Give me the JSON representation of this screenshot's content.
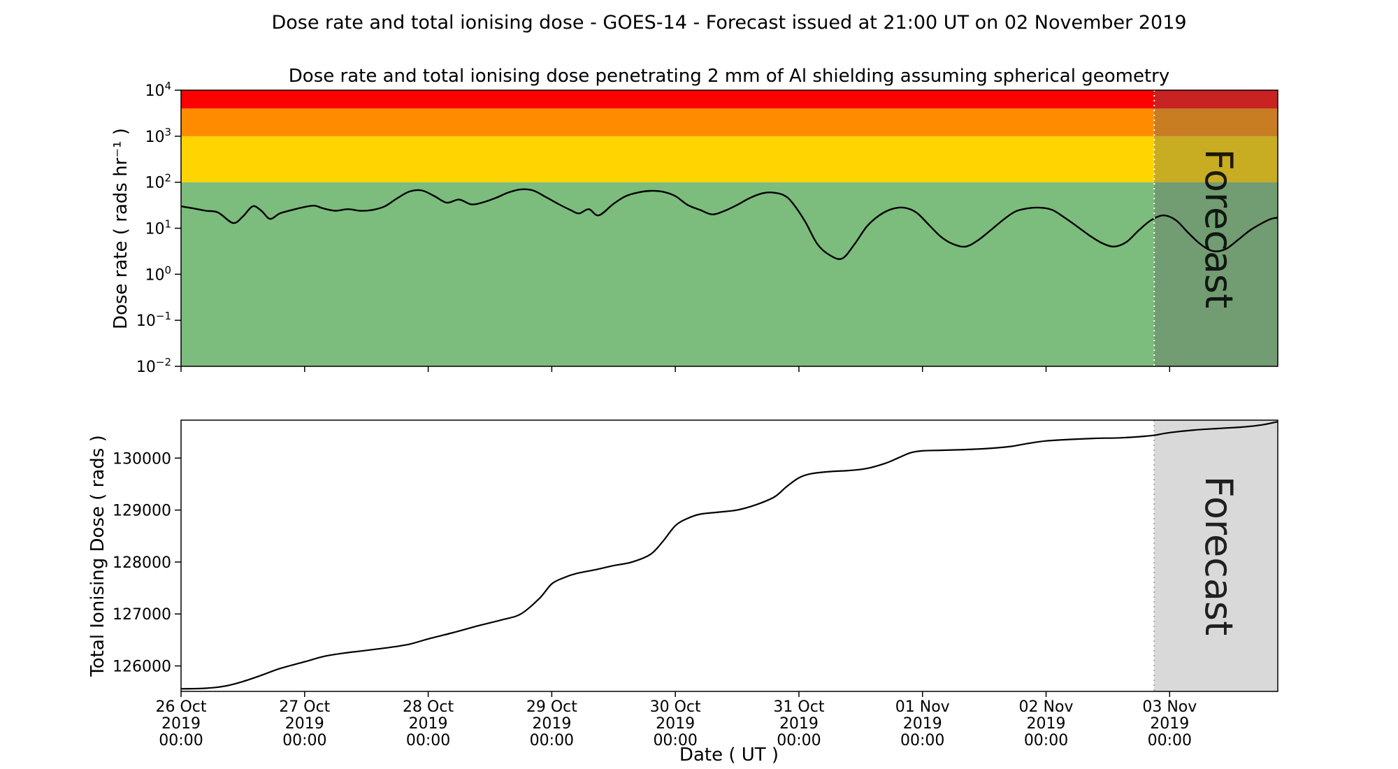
{
  "title": "Dose rate and total ionising dose - GOES-14 - Forecast issued at 21:00 UT on 02 November 2019",
  "subtitle": "Dose rate and total ionising dose penetrating 2 mm of Al shielding assuming spherical geometry",
  "xlabel": "Date ( UT )",
  "forecast": {
    "label": "Forecast",
    "start_day": 7.875,
    "watermark_color": "#8f8f8f",
    "shade_color": "#d9d9d9",
    "overlay_color": "#606060",
    "overlay_opacity": 0.35,
    "boundary_color_top": "#ffffff",
    "boundary_color_bottom": "#a8a8a8"
  },
  "x_axis": {
    "start_day": 0,
    "end_day": 8.875,
    "tick_days": [
      0,
      1,
      2,
      3,
      4,
      5,
      6,
      7,
      8
    ],
    "tick_labels": [
      [
        "26 Oct",
        "2019",
        "00:00"
      ],
      [
        "27 Oct",
        "2019",
        "00:00"
      ],
      [
        "28 Oct",
        "2019",
        "00:00"
      ],
      [
        "29 Oct",
        "2019",
        "00:00"
      ],
      [
        "30 Oct",
        "2019",
        "00:00"
      ],
      [
        "31 Oct",
        "2019",
        "00:00"
      ],
      [
        "01 Nov",
        "2019",
        "00:00"
      ],
      [
        "02 Nov",
        "2019",
        "00:00"
      ],
      [
        "03 Nov",
        "2019",
        "00:00"
      ]
    ]
  },
  "chart_data": [
    {
      "type": "line",
      "name": "dose-rate",
      "ylabel": "Dose rate ( rads hr⁻¹ )",
      "yscale": "log",
      "ylim": [
        0.01,
        10000
      ],
      "ytick_exponents": [
        -2,
        -1,
        0,
        1,
        2,
        3,
        4
      ],
      "line_color": "#000000",
      "bands": [
        {
          "label": "green",
          "from": 0.01,
          "to": 100,
          "color": "#7cbc7c"
        },
        {
          "label": "yellow",
          "from": 100,
          "to": 1000,
          "color": "#ffd400"
        },
        {
          "label": "orange",
          "from": 1000,
          "to": 4000,
          "color": "#ff8c00"
        },
        {
          "label": "red",
          "from": 4000,
          "to": 10000,
          "color": "#ff0000"
        }
      ],
      "points_day_value": [
        [
          0,
          30
        ],
        [
          0.1,
          27
        ],
        [
          0.2,
          24
        ],
        [
          0.3,
          22
        ],
        [
          0.42,
          13
        ],
        [
          0.5,
          18
        ],
        [
          0.58,
          30
        ],
        [
          0.65,
          24
        ],
        [
          0.72,
          16
        ],
        [
          0.8,
          21
        ],
        [
          0.9,
          25
        ],
        [
          1.0,
          29
        ],
        [
          1.08,
          31
        ],
        [
          1.15,
          27
        ],
        [
          1.25,
          24
        ],
        [
          1.35,
          26
        ],
        [
          1.45,
          24
        ],
        [
          1.55,
          25
        ],
        [
          1.65,
          30
        ],
        [
          1.75,
          45
        ],
        [
          1.85,
          63
        ],
        [
          1.95,
          66
        ],
        [
          2.05,
          50
        ],
        [
          2.15,
          36
        ],
        [
          2.25,
          42
        ],
        [
          2.35,
          33
        ],
        [
          2.45,
          37
        ],
        [
          2.55,
          46
        ],
        [
          2.65,
          60
        ],
        [
          2.75,
          70
        ],
        [
          2.85,
          66
        ],
        [
          2.95,
          48
        ],
        [
          3.05,
          34
        ],
        [
          3.15,
          25
        ],
        [
          3.22,
          21
        ],
        [
          3.3,
          26
        ],
        [
          3.38,
          19
        ],
        [
          3.5,
          34
        ],
        [
          3.6,
          50
        ],
        [
          3.7,
          60
        ],
        [
          3.8,
          65
        ],
        [
          3.9,
          62
        ],
        [
          4.0,
          50
        ],
        [
          4.1,
          32
        ],
        [
          4.2,
          25
        ],
        [
          4.3,
          20
        ],
        [
          4.4,
          24
        ],
        [
          4.5,
          32
        ],
        [
          4.6,
          45
        ],
        [
          4.7,
          57
        ],
        [
          4.78,
          60
        ],
        [
          4.88,
          52
        ],
        [
          4.95,
          35
        ],
        [
          5.05,
          14
        ],
        [
          5.15,
          4.5
        ],
        [
          5.25,
          2.6
        ],
        [
          5.35,
          2.2
        ],
        [
          5.45,
          4.5
        ],
        [
          5.55,
          11
        ],
        [
          5.65,
          19
        ],
        [
          5.75,
          26
        ],
        [
          5.85,
          28
        ],
        [
          5.95,
          22
        ],
        [
          6.05,
          12
        ],
        [
          6.15,
          6.5
        ],
        [
          6.25,
          4.5
        ],
        [
          6.35,
          4
        ],
        [
          6.45,
          5.5
        ],
        [
          6.55,
          9
        ],
        [
          6.65,
          15
        ],
        [
          6.75,
          23
        ],
        [
          6.85,
          27
        ],
        [
          6.95,
          28
        ],
        [
          7.05,
          25
        ],
        [
          7.15,
          17
        ],
        [
          7.25,
          11
        ],
        [
          7.35,
          7
        ],
        [
          7.45,
          4.8
        ],
        [
          7.55,
          4
        ],
        [
          7.65,
          5
        ],
        [
          7.75,
          9
        ],
        [
          7.85,
          15
        ],
        [
          7.95,
          19
        ],
        [
          8.05,
          15
        ],
        [
          8.15,
          8
        ],
        [
          8.25,
          4.5
        ],
        [
          8.35,
          3.2
        ],
        [
          8.45,
          3.5
        ],
        [
          8.55,
          5.5
        ],
        [
          8.65,
          9
        ],
        [
          8.75,
          13
        ],
        [
          8.82,
          16
        ],
        [
          8.875,
          17
        ]
      ]
    },
    {
      "type": "line",
      "name": "total-ionising-dose",
      "ylabel": "Total Ionising Dose ( rads )",
      "yscale": "linear",
      "ylim": [
        125510,
        130730
      ],
      "yticks": [
        126000,
        127000,
        128000,
        129000,
        130000
      ],
      "line_color": "#000000",
      "points_day_value": [
        [
          0,
          125560
        ],
        [
          0.2,
          125570
        ],
        [
          0.35,
          125610
        ],
        [
          0.5,
          125700
        ],
        [
          0.65,
          125820
        ],
        [
          0.8,
          125950
        ],
        [
          1.0,
          126080
        ],
        [
          1.15,
          126180
        ],
        [
          1.3,
          126240
        ],
        [
          1.5,
          126300
        ],
        [
          1.7,
          126360
        ],
        [
          1.85,
          126420
        ],
        [
          2.0,
          126520
        ],
        [
          2.2,
          126640
        ],
        [
          2.4,
          126770
        ],
        [
          2.6,
          126890
        ],
        [
          2.75,
          127000
        ],
        [
          2.9,
          127300
        ],
        [
          3.0,
          127580
        ],
        [
          3.1,
          127700
        ],
        [
          3.2,
          127780
        ],
        [
          3.35,
          127850
        ],
        [
          3.5,
          127930
        ],
        [
          3.65,
          128000
        ],
        [
          3.8,
          128150
        ],
        [
          3.9,
          128400
        ],
        [
          4.0,
          128700
        ],
        [
          4.1,
          128840
        ],
        [
          4.2,
          128920
        ],
        [
          4.35,
          128960
        ],
        [
          4.5,
          129000
        ],
        [
          4.65,
          129100
        ],
        [
          4.8,
          129250
        ],
        [
          4.9,
          129450
        ],
        [
          5.0,
          129620
        ],
        [
          5.1,
          129700
        ],
        [
          5.25,
          129740
        ],
        [
          5.4,
          129760
        ],
        [
          5.55,
          129800
        ],
        [
          5.7,
          129900
        ],
        [
          5.8,
          130000
        ],
        [
          5.9,
          130100
        ],
        [
          6.0,
          130140
        ],
        [
          6.15,
          130150
        ],
        [
          6.3,
          130160
        ],
        [
          6.5,
          130180
        ],
        [
          6.7,
          130220
        ],
        [
          6.85,
          130280
        ],
        [
          7.0,
          130330
        ],
        [
          7.2,
          130360
        ],
        [
          7.4,
          130380
        ],
        [
          7.6,
          130390
        ],
        [
          7.8,
          130420
        ],
        [
          7.875,
          130440
        ],
        [
          8.0,
          130490
        ],
        [
          8.2,
          130540
        ],
        [
          8.4,
          130570
        ],
        [
          8.6,
          130600
        ],
        [
          8.75,
          130640
        ],
        [
          8.875,
          130700
        ]
      ]
    }
  ]
}
